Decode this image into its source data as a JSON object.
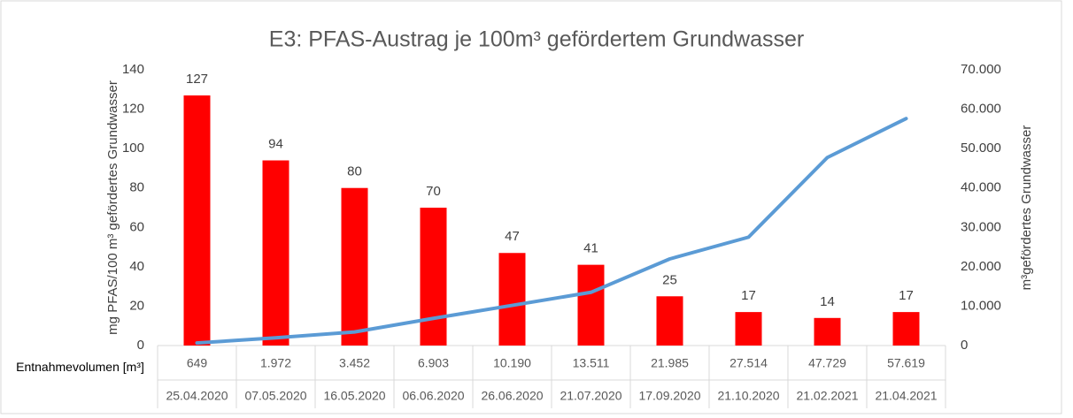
{
  "chart_data": {
    "type": "bar",
    "title": "E3: PFAS-Austrag je 100m³ gefördertem Grundwasser",
    "ylabel": "mg PFAS/100 m³ gefördertes Grundwasser",
    "y2label": "m³gefördertes Grundwasser",
    "row_label": "Entnahmevolumen [m³]",
    "categories": [
      "25.04.2020",
      "07.05.2020",
      "16.05.2020",
      "06.06.2020",
      "26.06.2020",
      "21.07.2020",
      "17.09.2020",
      "21.10.2020",
      "21.02.2021",
      "21.04.2021"
    ],
    "series": [
      {
        "type": "bar",
        "color": "#ff0000",
        "values": [
          127,
          94,
          80,
          70,
          47,
          41,
          25,
          17,
          14,
          17
        ]
      },
      {
        "type": "line",
        "axis": "y2",
        "color": "#5b9bd5",
        "values": [
          649,
          1972,
          3452,
          6903,
          10190,
          13511,
          21985,
          27514,
          47729,
          57619
        ],
        "value_labels": [
          "649",
          "1.972",
          "3.452",
          "6.903",
          "10.190",
          "13.511",
          "21.985",
          "27.514",
          "47.729",
          "57.619"
        ]
      }
    ],
    "ylim": [
      0,
      140
    ],
    "yticks": [
      0,
      20,
      40,
      60,
      80,
      100,
      120,
      140
    ],
    "y2lim": [
      0,
      70000
    ],
    "y2ticks": [
      0,
      {
        "value": 10000,
        "label": "10.000"
      },
      {
        "value": 20000,
        "label": "20.000"
      },
      {
        "value": 30000,
        "label": "30.000"
      },
      {
        "value": 40000,
        "label": "40.000"
      },
      {
        "value": 50000,
        "label": "50.000"
      },
      {
        "value": 60000,
        "label": "60.000"
      },
      {
        "value": 70000,
        "label": "70.000"
      }
    ],
    "grid": false
  }
}
